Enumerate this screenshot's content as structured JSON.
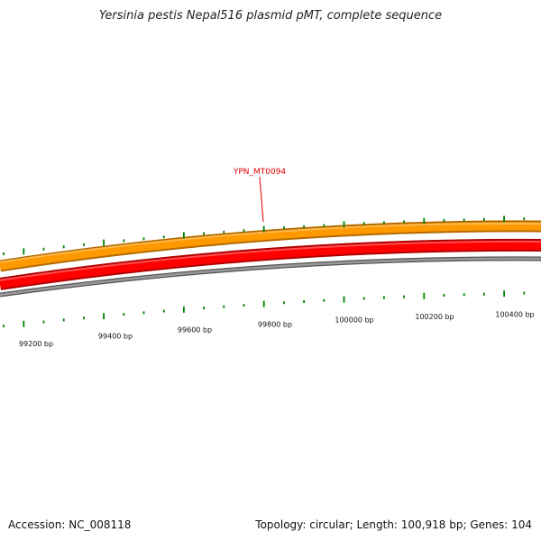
{
  "title": "Yersinia pestis Nepal516 plasmid pMT, complete sequence",
  "footer": {
    "accession": "Accession: NC_008118",
    "summary": "Topology: circular; Length: 100,918 bp; Genes: 104"
  },
  "plasmid": {
    "length_bp": 100918,
    "topology": "circular"
  },
  "highlight_gene": {
    "label": "YPN_MT0094",
    "color": "#e00000"
  },
  "tracks": [
    {
      "name": "outer-feature-track",
      "color": "#ff9900"
    },
    {
      "name": "inner-feature-track",
      "color": "#ff0000"
    },
    {
      "name": "backbone",
      "color": "#808080"
    }
  ],
  "tick_color": "#008000",
  "scale_labels": [
    "99200 bp",
    "99400 bp",
    "99600 bp",
    "99800 bp",
    "100000 bp",
    "100200 bp",
    "100400 bp"
  ]
}
